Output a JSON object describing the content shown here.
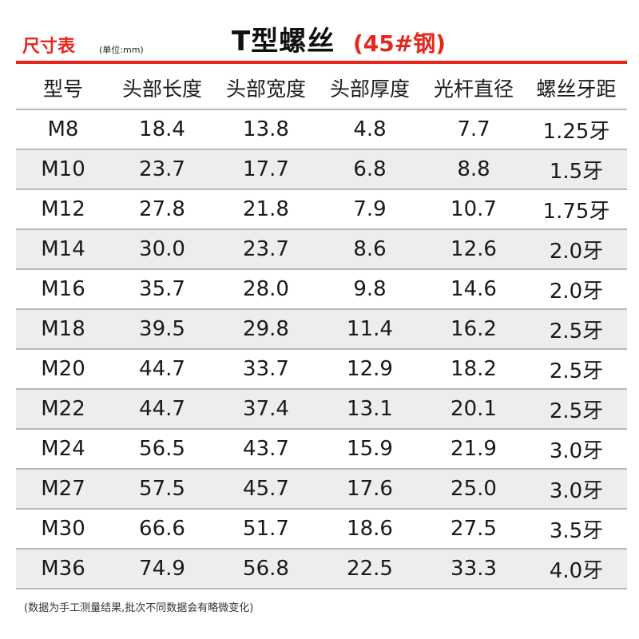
{
  "header": {
    "size_label": "尺寸表",
    "unit_label": "(单位:mm)",
    "title_main": "T型螺丝",
    "title_sub": "(45#钢)",
    "accent_color": "#e8261c"
  },
  "table": {
    "columns": [
      "型号",
      "头部长度",
      "头部宽度",
      "头部厚度",
      "光杆直径",
      "螺丝牙距"
    ],
    "rows": [
      [
        "M8",
        "18.4",
        "13.8",
        "4.8",
        "7.7",
        "1.25牙"
      ],
      [
        "M10",
        "23.7",
        "17.7",
        "6.8",
        "8.8",
        "1.5牙"
      ],
      [
        "M12",
        "27.8",
        "21.8",
        "7.9",
        "10.7",
        "1.75牙"
      ],
      [
        "M14",
        "30.0",
        "23.7",
        "8.6",
        "12.6",
        "2.0牙"
      ],
      [
        "M16",
        "35.7",
        "28.0",
        "9.8",
        "14.6",
        "2.0牙"
      ],
      [
        "M18",
        "39.5",
        "29.8",
        "11.4",
        "16.2",
        "2.5牙"
      ],
      [
        "M20",
        "44.7",
        "33.7",
        "12.9",
        "18.2",
        "2.5牙"
      ],
      [
        "M22",
        "44.7",
        "37.4",
        "13.1",
        "20.1",
        "2.5牙"
      ],
      [
        "M24",
        "56.5",
        "43.7",
        "15.9",
        "21.9",
        "3.0牙"
      ],
      [
        "M27",
        "57.5",
        "45.7",
        "17.6",
        "25.0",
        "3.0牙"
      ],
      [
        "M30",
        "66.6",
        "51.7",
        "18.6",
        "27.5",
        "3.5牙"
      ],
      [
        "M36",
        "74.9",
        "56.8",
        "22.5",
        "33.3",
        "4.0牙"
      ]
    ]
  },
  "footnote": "(数据为手工测量结果,批次不同数据会有略微变化)"
}
